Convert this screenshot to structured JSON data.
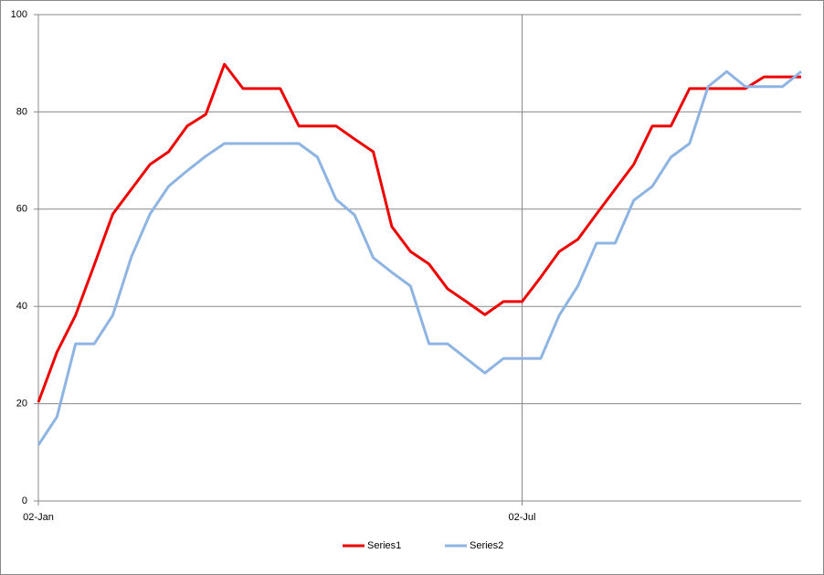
{
  "chart_data": {
    "type": "line",
    "categories": [
      "02-Jan",
      null,
      null,
      null,
      null,
      null,
      null,
      null,
      null,
      null,
      null,
      null,
      null,
      null,
      null,
      null,
      null,
      null,
      null,
      null,
      null,
      null,
      null,
      null,
      null,
      null,
      "02-Jul",
      null,
      null,
      null,
      null,
      null,
      null,
      null,
      null,
      null,
      null,
      null,
      null,
      null,
      null,
      null
    ],
    "series": [
      {
        "name": "Series1",
        "color": "#ee0000",
        "values": [
          20.3,
          30.6,
          38.2,
          48.5,
          59,
          64.1,
          69.2,
          71.8,
          77.1,
          79.5,
          89.8,
          84.8,
          84.8,
          84.8,
          77.1,
          77.1,
          77.1,
          74.4,
          71.8,
          56.4,
          51.3,
          48.7,
          43.6,
          41,
          38.3,
          41,
          41,
          46,
          51.3,
          53.8,
          59,
          64.1,
          69.2,
          77.1,
          77.1,
          84.8,
          84.8,
          84.8,
          84.8,
          87.2,
          87.2,
          87.2
        ]
      },
      {
        "name": "Series2",
        "color": "#8db4e2",
        "values": [
          11.5,
          17.3,
          32.3,
          32.3,
          38.2,
          50.2,
          59,
          64.7,
          67.9,
          70.9,
          73.5,
          73.5,
          73.5,
          73.5,
          73.5,
          70.7,
          62,
          58.8,
          50,
          47,
          44.2,
          32.3,
          32.3,
          29.3,
          26.3,
          29.3,
          29.3,
          29.3,
          38.2,
          44.2,
          53,
          53,
          61.8,
          64.7,
          70.7,
          73.5,
          85.2,
          88.3,
          85.2,
          85.2,
          85.2,
          88.3
        ]
      }
    ],
    "ylim": [
      0,
      100
    ],
    "yticks": [
      0,
      20,
      40,
      60,
      80,
      100
    ],
    "grid": true,
    "xgrid": true,
    "legend": "bottom"
  }
}
